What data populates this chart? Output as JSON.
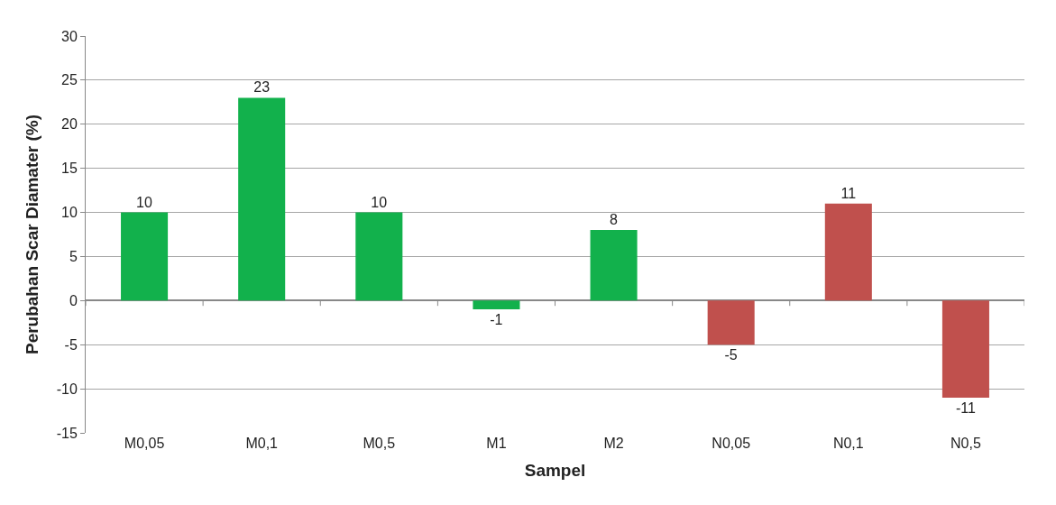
{
  "chart_data": {
    "type": "bar",
    "xlabel": "Sampel",
    "ylabel": "Perubahan Scar Diamater (%)",
    "categories": [
      "M0,05",
      "M0,1",
      "M0,5",
      "M1",
      "M2",
      "N0,05",
      "N0,1",
      "N0,5"
    ],
    "values": [
      10,
      23,
      10,
      -1,
      8,
      -5,
      11,
      -11
    ],
    "colors": [
      "#12b14c",
      "#12b14c",
      "#12b14c",
      "#12b14c",
      "#12b14c",
      "#c0504d",
      "#c0504d",
      "#c0504d"
    ],
    "ylim": [
      -15,
      30
    ],
    "yticks": [
      -15,
      -10,
      -5,
      0,
      5,
      10,
      15,
      20,
      25,
      30
    ],
    "grid": "y",
    "data_labels": true
  }
}
